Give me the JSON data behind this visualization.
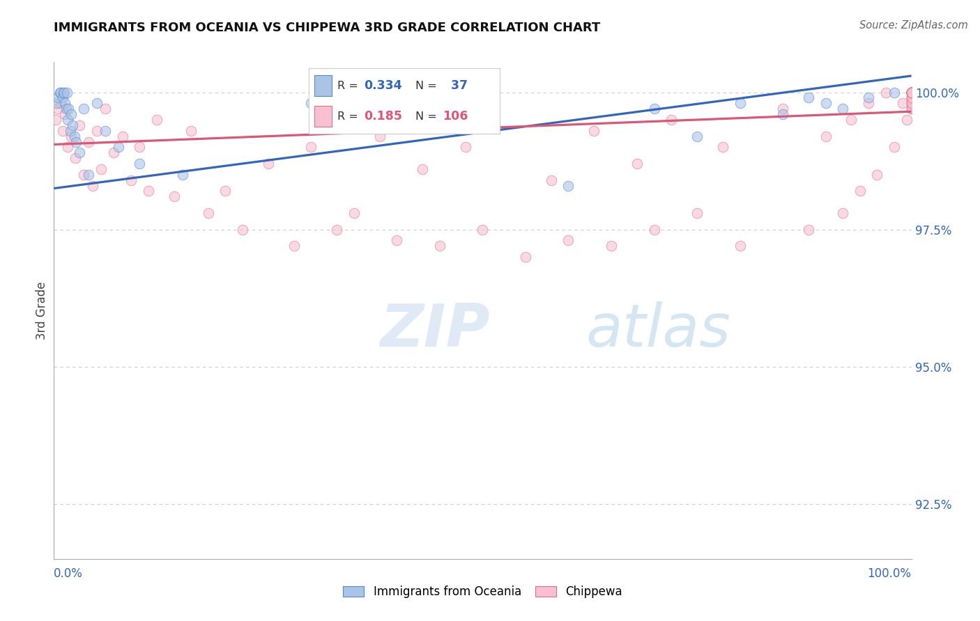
{
  "title": "IMMIGRANTS FROM OCEANIA VS CHIPPEWA 3RD GRADE CORRELATION CHART",
  "source": "Source: ZipAtlas.com",
  "ylabel": "3rd Grade",
  "ytick_labels": [
    "92.5%",
    "95.0%",
    "97.5%",
    "100.0%"
  ],
  "ytick_values": [
    92.5,
    95.0,
    97.5,
    100.0
  ],
  "legend_blue_label": "Immigrants from Oceania",
  "legend_pink_label": "Chippewa",
  "R_blue": 0.334,
  "N_blue": 37,
  "R_pink": 0.185,
  "N_pink": 106,
  "blue_face": "#aac4e8",
  "blue_edge": "#5588cc",
  "pink_face": "#f8c0d0",
  "pink_edge": "#e0708a",
  "trend_blue": "#3366bb",
  "trend_pink": "#dd5577",
  "text_blue": "#3366bb",
  "text_pink": "#dd5577",
  "grid_color": "#cccccc",
  "bg": "#ffffff",
  "xmin": 0.0,
  "xmax": 100.0,
  "ymin": 91.5,
  "ymax": 100.55,
  "blue_trend_x0": 0.0,
  "blue_trend_y0": 98.25,
  "blue_trend_x1": 100.0,
  "blue_trend_y1": 100.3,
  "pink_trend_x0": 0.0,
  "pink_trend_y0": 99.05,
  "pink_trend_x1": 100.0,
  "pink_trend_y1": 99.65,
  "blue_x": [
    0.3,
    0.5,
    0.7,
    0.8,
    1.0,
    1.1,
    1.2,
    1.3,
    1.4,
    1.5,
    1.6,
    1.7,
    1.9,
    2.0,
    2.2,
    2.4,
    2.6,
    3.0,
    3.5,
    4.0,
    5.0,
    6.0,
    7.5,
    10.0,
    15.0,
    30.0,
    48.0,
    60.0,
    70.0,
    75.0,
    80.0,
    85.0,
    88.0,
    90.0,
    92.0,
    95.0,
    98.0
  ],
  "blue_y": [
    99.8,
    99.9,
    100.0,
    100.0,
    99.9,
    100.0,
    100.0,
    99.8,
    99.7,
    100.0,
    99.5,
    99.7,
    99.3,
    99.6,
    99.4,
    99.2,
    99.1,
    98.9,
    99.7,
    98.5,
    99.8,
    99.3,
    99.0,
    98.7,
    98.5,
    99.8,
    99.5,
    98.3,
    99.7,
    99.2,
    99.8,
    99.6,
    99.9,
    99.8,
    99.7,
    99.9,
    100.0
  ],
  "pink_x": [
    0.2,
    0.5,
    0.8,
    1.0,
    1.3,
    1.6,
    2.0,
    2.5,
    3.0,
    3.5,
    4.0,
    4.5,
    5.0,
    5.5,
    6.0,
    7.0,
    8.0,
    9.0,
    10.0,
    11.0,
    12.0,
    14.0,
    16.0,
    18.0,
    20.0,
    22.0,
    25.0,
    28.0,
    30.0,
    33.0,
    35.0,
    38.0,
    40.0,
    43.0,
    45.0,
    48.0,
    50.0,
    55.0,
    58.0,
    60.0,
    63.0,
    65.0,
    68.0,
    70.0,
    72.0,
    75.0,
    78.0,
    80.0,
    85.0,
    88.0,
    90.0,
    92.0,
    93.0,
    94.0,
    95.0,
    96.0,
    97.0,
    98.0,
    99.0,
    99.5,
    100.0,
    100.0,
    100.0,
    100.0,
    100.0,
    100.0,
    100.0,
    100.0,
    100.0,
    100.0,
    100.0,
    100.0,
    100.0,
    100.0,
    100.0,
    100.0,
    100.0,
    100.0,
    100.0,
    100.0,
    100.0,
    100.0,
    100.0,
    100.0,
    100.0,
    100.0,
    100.0,
    100.0,
    100.0,
    100.0,
    100.0,
    100.0,
    100.0,
    100.0,
    100.0,
    100.0,
    100.0,
    100.0,
    100.0,
    100.0,
    100.0,
    100.0,
    100.0,
    100.0,
    100.0,
    100.0
  ],
  "pink_y": [
    99.5,
    99.7,
    99.8,
    99.3,
    99.6,
    99.0,
    99.2,
    98.8,
    99.4,
    98.5,
    99.1,
    98.3,
    99.3,
    98.6,
    99.7,
    98.9,
    99.2,
    98.4,
    99.0,
    98.2,
    99.5,
    98.1,
    99.3,
    97.8,
    98.2,
    97.5,
    98.7,
    97.2,
    99.0,
    97.5,
    97.8,
    99.2,
    97.3,
    98.6,
    97.2,
    99.0,
    97.5,
    97.0,
    98.4,
    97.3,
    99.3,
    97.2,
    98.7,
    97.5,
    99.5,
    97.8,
    99.0,
    97.2,
    99.7,
    97.5,
    99.2,
    97.8,
    99.5,
    98.2,
    99.8,
    98.5,
    100.0,
    99.0,
    99.8,
    99.5,
    100.0,
    100.0,
    99.8,
    100.0,
    100.0,
    99.7,
    100.0,
    100.0,
    99.9,
    100.0,
    100.0,
    100.0,
    99.8,
    100.0,
    100.0,
    100.0,
    99.7,
    100.0,
    99.9,
    100.0,
    100.0,
    100.0,
    99.8,
    100.0,
    100.0,
    100.0,
    99.9,
    100.0,
    100.0,
    99.8,
    100.0,
    100.0,
    100.0,
    99.7,
    100.0,
    99.9,
    100.0,
    100.0,
    100.0,
    99.8,
    100.0,
    100.0,
    100.0,
    99.9,
    100.0,
    100.0
  ],
  "marker_size": 110,
  "marker_alpha": 0.6
}
